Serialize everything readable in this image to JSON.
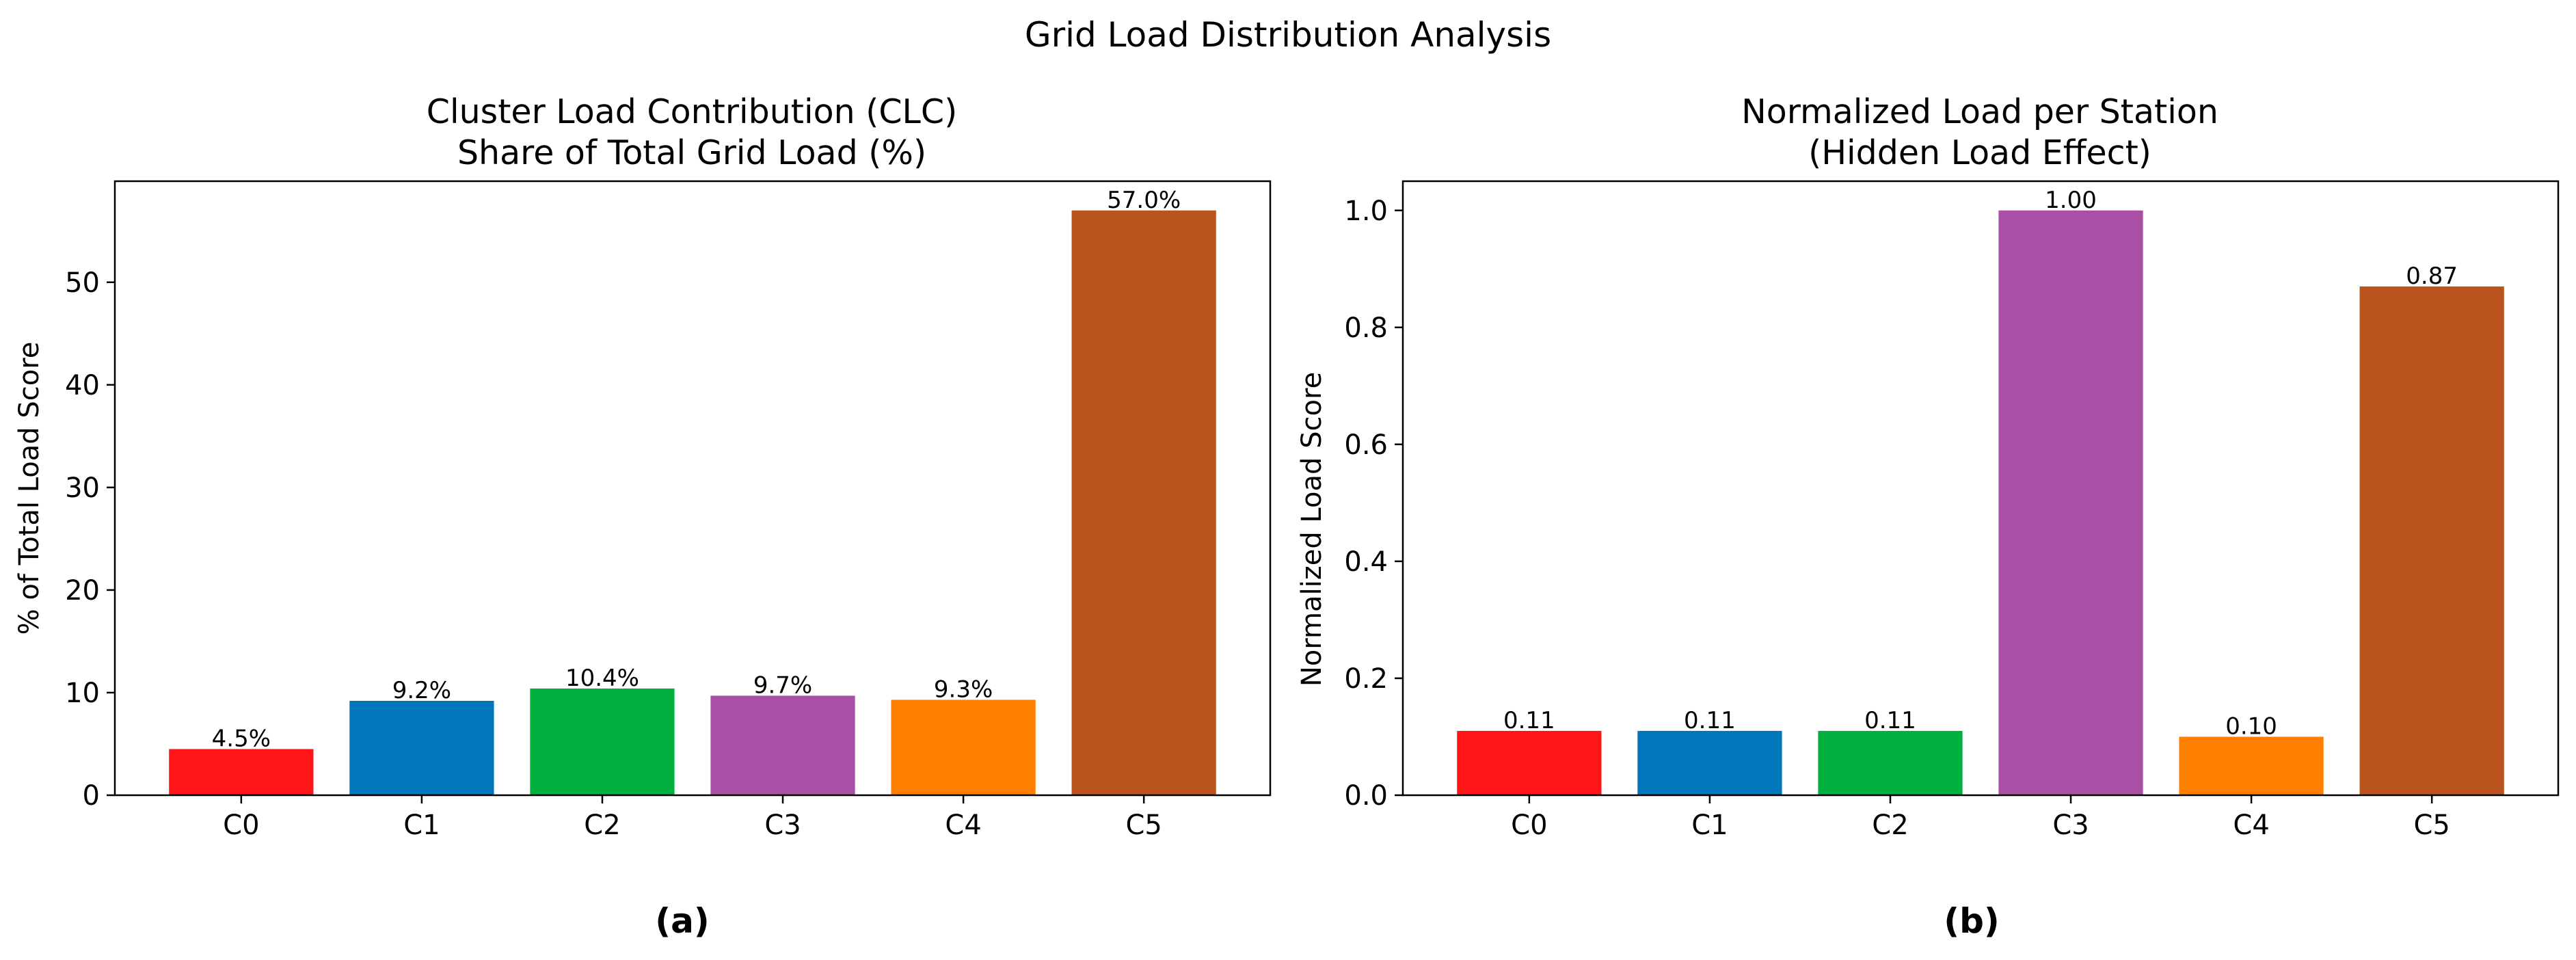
{
  "figure_title": "Grid Load Distribution Analysis",
  "chart_data": [
    {
      "type": "bar",
      "panel_label": "(a)",
      "title_lines": [
        "Cluster Load Contribution (CLC)",
        "Share of Total Grid Load (%)"
      ],
      "xlabel": "",
      "ylabel": "% of Total Load Score",
      "categories": [
        "C0",
        "C1",
        "C2",
        "C3",
        "C4",
        "C5"
      ],
      "values": [
        4.5,
        9.2,
        10.4,
        9.7,
        9.3,
        57.0
      ],
      "data_labels": [
        "4.5%",
        "9.2%",
        "10.4%",
        "9.7%",
        "9.3%",
        "57.0%"
      ],
      "colors": [
        "#ff1418",
        "#0077bb",
        "#00b140",
        "#aa4fa6",
        "#ff7f00",
        "#b9541e"
      ],
      "ylim": [
        0,
        59.85
      ],
      "yticks": [
        0,
        10,
        20,
        30,
        40,
        50
      ],
      "ytick_labels": [
        "0",
        "10",
        "20",
        "30",
        "40",
        "50"
      ],
      "grid": false,
      "legend": "none"
    },
    {
      "type": "bar",
      "panel_label": "(b)",
      "title_lines": [
        "Normalized Load per Station",
        "(Hidden Load Effect)"
      ],
      "xlabel": "",
      "ylabel": "Normalized Load Score",
      "categories": [
        "C0",
        "C1",
        "C2",
        "C3",
        "C4",
        "C5"
      ],
      "values": [
        0.11,
        0.11,
        0.11,
        1.0,
        0.1,
        0.87
      ],
      "data_labels": [
        "0.11",
        "0.11",
        "0.11",
        "1.00",
        "0.10",
        "0.87"
      ],
      "colors": [
        "#ff1418",
        "#0077bb",
        "#00b140",
        "#aa4fa6",
        "#ff7f00",
        "#b9541e"
      ],
      "ylim": [
        0,
        1.05
      ],
      "yticks": [
        0.0,
        0.2,
        0.4,
        0.6,
        0.8,
        1.0
      ],
      "ytick_labels": [
        "0.0",
        "0.2",
        "0.4",
        "0.6",
        "0.8",
        "1.0"
      ],
      "grid": false,
      "legend": "none"
    }
  ]
}
